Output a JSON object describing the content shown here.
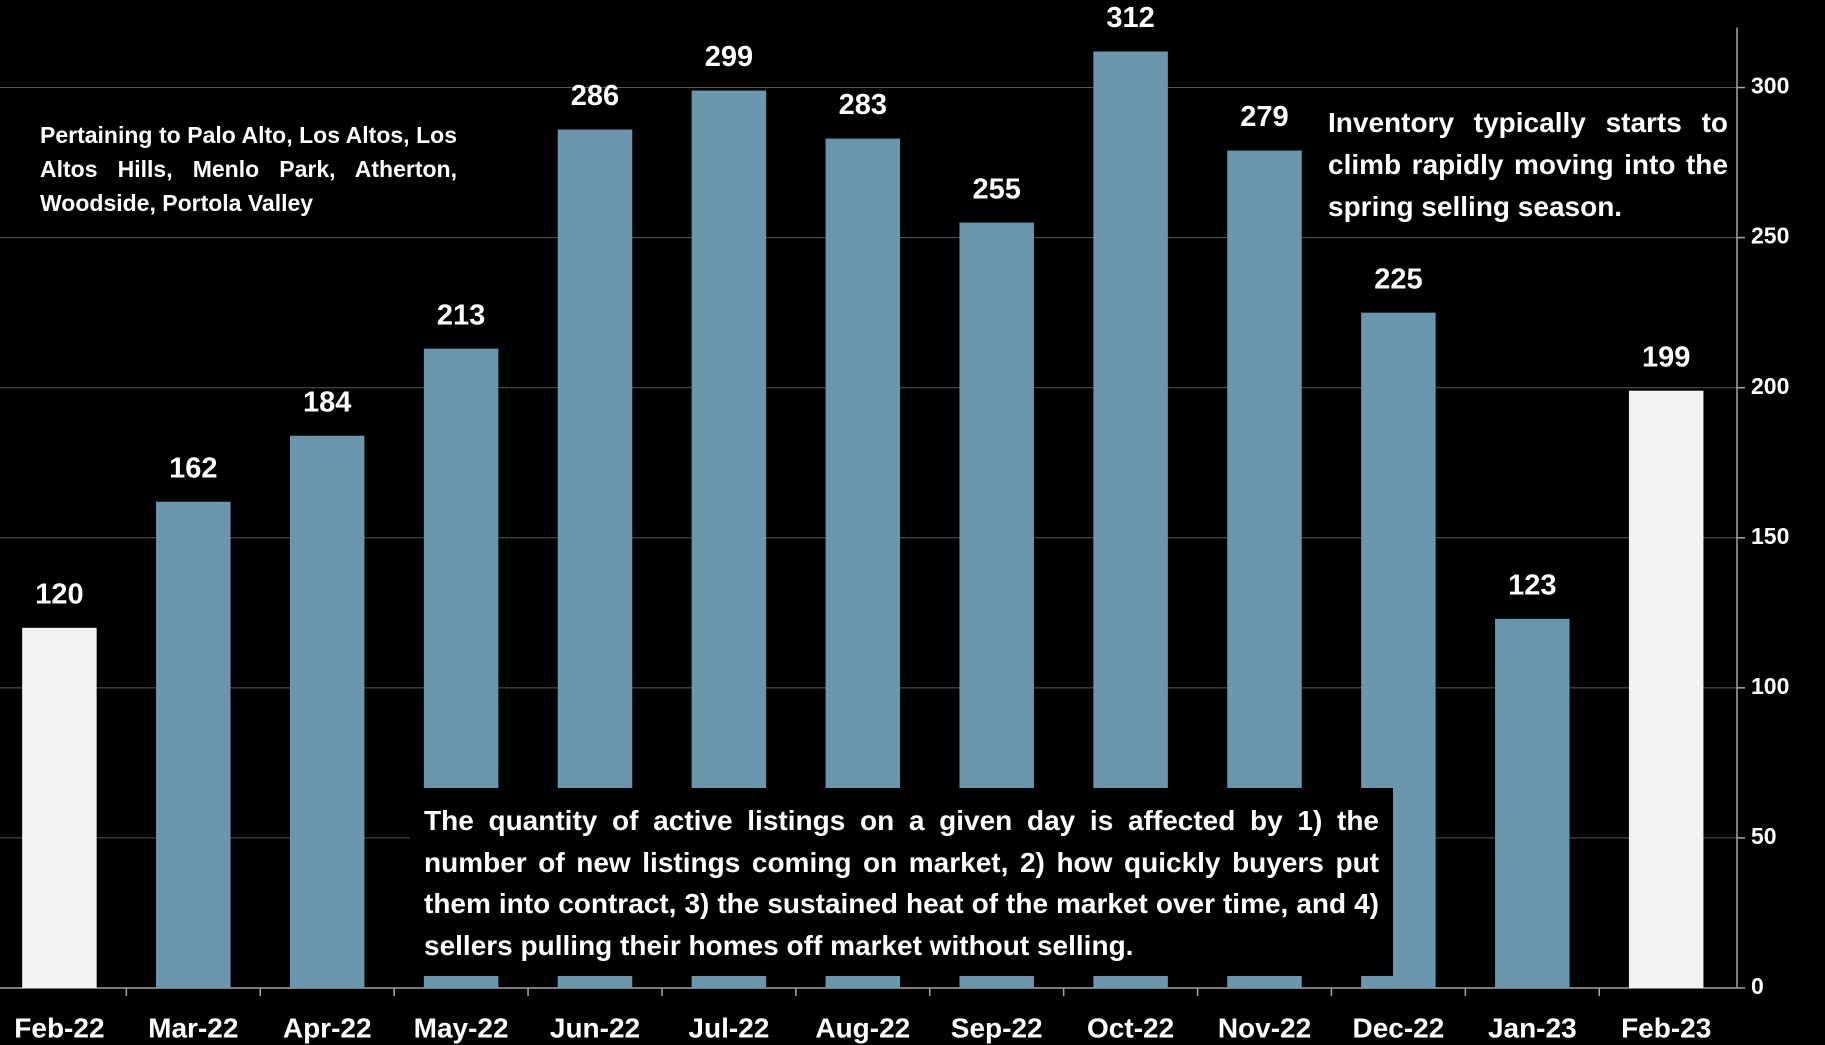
{
  "chart_data": {
    "type": "bar",
    "categories": [
      "Feb-22",
      "Mar-22",
      "Apr-22",
      "May-22",
      "Jun-22",
      "Jul-22",
      "Aug-22",
      "Sep-22",
      "Oct-22",
      "Nov-22",
      "Dec-22",
      "Jan-23",
      "Feb-23"
    ],
    "values": [
      120,
      162,
      184,
      213,
      286,
      299,
      283,
      255,
      312,
      279,
      225,
      123,
      199
    ],
    "colors": [
      "#f2f2f2",
      "#6a96ae",
      "#6a96ae",
      "#6a96ae",
      "#6a96ae",
      "#6a96ae",
      "#6a96ae",
      "#6a96ae",
      "#6a96ae",
      "#6a96ae",
      "#6a96ae",
      "#6a96ae",
      "#f2f2f2"
    ],
    "ylim": [
      0,
      320
    ],
    "yticks": [
      0,
      50,
      100,
      150,
      200,
      250,
      300
    ],
    "grid": true,
    "y_axis_side": "right",
    "annotations": [
      "Pertaining to Palo Alto, Los Altos, Los Altos Hills, Menlo Park, Atherton, Woodside, Portola Valley",
      "Inventory typically starts to climb rapidly moving into the spring selling season.",
      "The quantity of active listings on a given day is affected by 1) the number of new listings coming on market, 2) how quickly buyers put them into contract, 3) the sustained heat of the market over time, and 4) sellers pulling their homes off market without selling."
    ]
  }
}
